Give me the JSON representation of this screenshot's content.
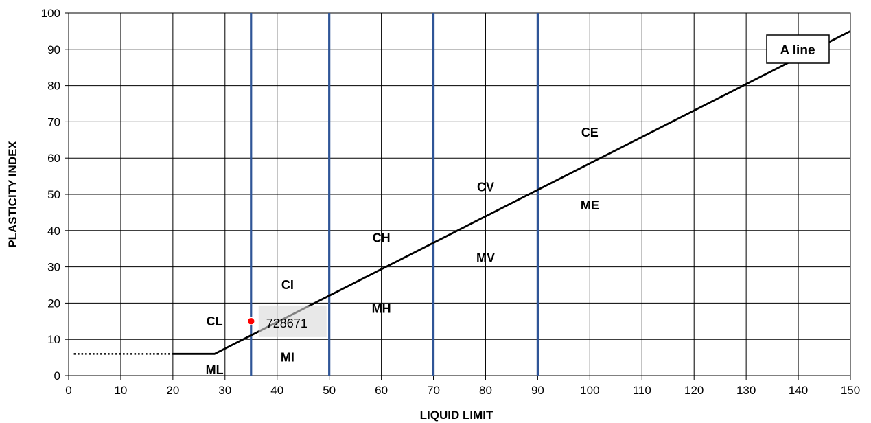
{
  "chart_data": {
    "type": "line",
    "title": "",
    "xlabel": "LIQUID LIMIT",
    "ylabel": "PLASTICITY INDEX",
    "xlim": [
      0,
      150
    ],
    "ylim": [
      0,
      100
    ],
    "x_ticks": [
      0,
      10,
      20,
      30,
      40,
      50,
      60,
      70,
      80,
      90,
      100,
      110,
      120,
      130,
      140,
      150
    ],
    "y_ticks": [
      0,
      10,
      20,
      30,
      40,
      50,
      60,
      70,
      80,
      90,
      100
    ],
    "grid": true,
    "a_line": {
      "label": "A line",
      "points": [
        [
          20,
          6
        ],
        [
          28,
          6
        ],
        [
          150,
          95
        ]
      ],
      "color": "#000000"
    },
    "dotted_extension": {
      "points": [
        [
          1,
          6
        ],
        [
          20,
          6
        ]
      ],
      "color": "#000000"
    },
    "boundaries": {
      "x": [
        35,
        50,
        70,
        90
      ],
      "color": "#2f5597"
    },
    "zones": [
      {
        "label": "CL",
        "x": 28,
        "y": 15
      },
      {
        "label": "ML",
        "x": 28,
        "y": 1.5
      },
      {
        "label": "CI",
        "x": 42,
        "y": 25
      },
      {
        "label": "MI",
        "x": 42,
        "y": 5
      },
      {
        "label": "CH",
        "x": 60,
        "y": 38
      },
      {
        "label": "MH",
        "x": 60,
        "y": 18.5
      },
      {
        "label": "CV",
        "x": 80,
        "y": 52
      },
      {
        "label": "MV",
        "x": 80,
        "y": 32.5
      },
      {
        "label": "CE",
        "x": 100,
        "y": 67
      },
      {
        "label": "ME",
        "x": 100,
        "y": 47
      }
    ],
    "samples": [
      {
        "label": "728671",
        "x": 35,
        "y": 15,
        "color": "#ff0000"
      }
    ]
  }
}
